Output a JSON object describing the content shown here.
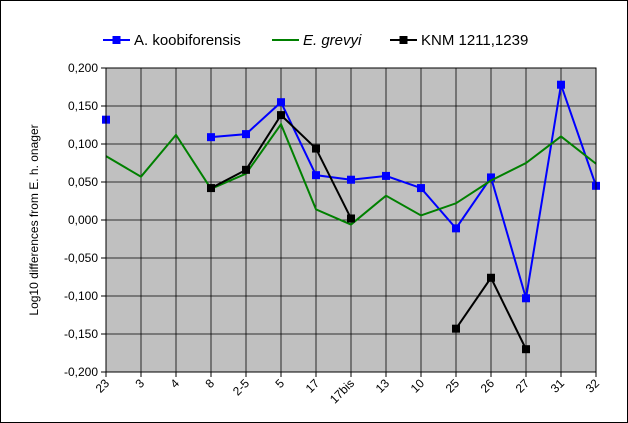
{
  "chart_data": {
    "type": "line",
    "categories": [
      "23",
      "3",
      "4",
      "8",
      "2-5",
      "5",
      "17",
      "17bis",
      "13",
      "10",
      "25",
      "26",
      "27",
      "31",
      "32"
    ],
    "ylabel": "Log10 differences from E. h. onager",
    "xlabel": "",
    "ylim": [
      -0.2,
      0.2
    ],
    "ytick_step": 0.05,
    "yticks": [
      "-0,200",
      "-0,150",
      "-0,100",
      "-0,050",
      "0,000",
      "0,050",
      "0,100",
      "0,150",
      "0,200"
    ],
    "grid": true,
    "legend_position": "top",
    "plot_background": "#c0c0c0",
    "series": [
      {
        "name": "A. koobiforensis",
        "color": "#0000ff",
        "marker": "square",
        "italic": false,
        "values": [
          0.132,
          null,
          null,
          0.109,
          0.113,
          0.155,
          0.059,
          0.053,
          0.058,
          0.042,
          -0.011,
          0.056,
          -0.103,
          0.178,
          0.045
        ]
      },
      {
        "name": "E. grevyi",
        "color": "#008000",
        "marker": "none",
        "italic": true,
        "values": [
          0.084,
          0.057,
          0.112,
          0.041,
          0.061,
          0.126,
          0.014,
          -0.006,
          0.032,
          0.006,
          0.022,
          0.052,
          0.075,
          0.11,
          0.074
        ]
      },
      {
        "name": "KNM 1211,1239",
        "color": "#000000",
        "marker": "square",
        "italic": false,
        "values": [
          null,
          null,
          null,
          0.042,
          0.066,
          0.138,
          0.094,
          0.002,
          null,
          null,
          -0.143,
          -0.076,
          -0.17,
          null,
          null
        ]
      }
    ]
  }
}
